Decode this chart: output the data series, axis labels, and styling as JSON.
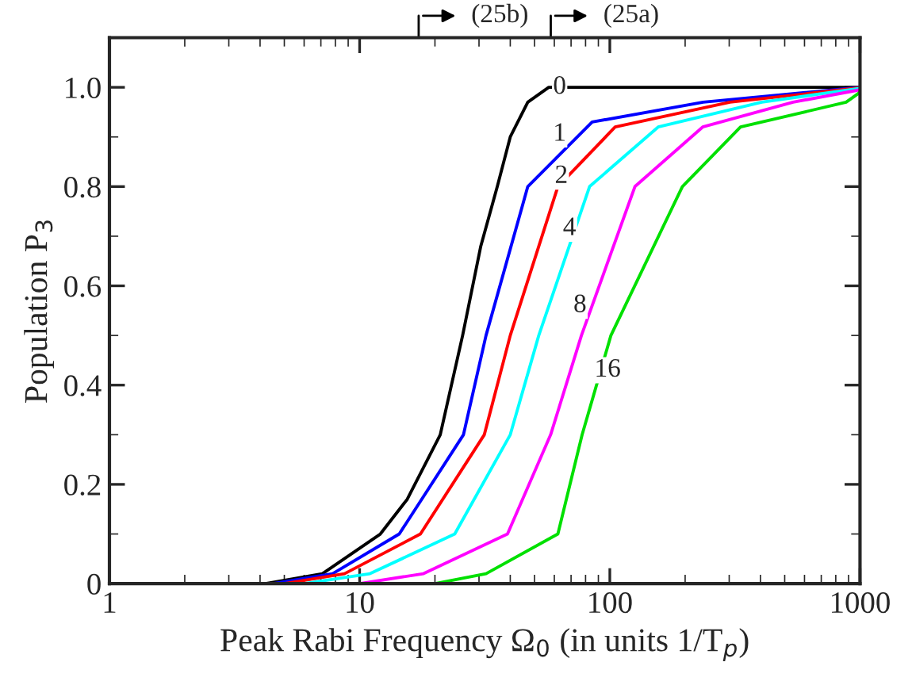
{
  "chart_data": {
    "type": "line",
    "xlabel": "Peak Rabi Frequency Ω$_{0}$ (in units 1/T$_{p}$)",
    "ylabel": "Population P$_{3}$",
    "log": "x",
    "xlim": [
      1,
      1000
    ],
    "xticks": [
      1,
      10,
      100,
      1000
    ],
    "ylim": [
      0,
      1.1
    ],
    "yticks": [
      0,
      0.2,
      0.4,
      0.6,
      0.8,
      {
        "value": 1,
        "label": "1.0"
      }
    ],
    "grid": false,
    "legend": false,
    "marker": "none",
    "line_style": "solid",
    "series": [
      {
        "color": "#000000",
        "x": [
          1,
          2,
          4.2,
          7.1,
          12.1,
          15.5,
          21,
          25.8,
          30.5,
          35.5,
          40,
          47,
          57,
          100,
          1000
        ],
        "values": [
          0,
          0,
          0,
          0.02,
          0.1,
          0.17,
          0.3,
          0.5,
          0.68,
          0.8,
          0.9,
          0.97,
          1.0,
          1.0,
          1.0
        ]
      },
      {
        "color": "#0000ff",
        "x": [
          4.5,
          7.8,
          14.4,
          26,
          32,
          47,
          85,
          236,
          1000
        ],
        "values": [
          0,
          0.02,
          0.1,
          0.3,
          0.5,
          0.8,
          0.93,
          0.97,
          1.0
        ]
      },
      {
        "color": "#ff0000",
        "x": [
          5,
          8.7,
          17.5,
          31.5,
          40,
          62,
          105,
          302,
          1000
        ],
        "values": [
          0,
          0.02,
          0.1,
          0.3,
          0.5,
          0.8,
          0.92,
          0.97,
          0.999
        ]
      },
      {
        "color": "#00ffff",
        "x": [
          6,
          11,
          24,
          40,
          52,
          83,
          156,
          405,
          1000
        ],
        "values": [
          0,
          0.02,
          0.1,
          0.3,
          0.5,
          0.8,
          0.92,
          0.97,
          0.998
        ]
      },
      {
        "color": "#ff00ff",
        "x": [
          10,
          18,
          39,
          58,
          77,
          126,
          235,
          540,
          1000
        ],
        "values": [
          0,
          0.02,
          0.1,
          0.3,
          0.5,
          0.8,
          0.92,
          0.97,
          0.995
        ]
      },
      {
        "color": "#00e000",
        "x": [
          20,
          32,
          62,
          77.5,
          101,
          195,
          333,
          880,
          1000
        ],
        "values": [
          0,
          0.02,
          0.1,
          0.3,
          0.5,
          0.8,
          0.92,
          0.97,
          0.99
        ]
      }
    ],
    "annotations": [
      {
        "text": "0",
        "x": 63,
        "y": 1.0
      },
      {
        "text": "1",
        "x": 63,
        "y": 0.905
      },
      {
        "text": "2",
        "x": 64,
        "y": 0.82
      },
      {
        "text": "4",
        "x": 69,
        "y": 0.715
      },
      {
        "text": "8",
        "x": 76,
        "y": 0.56
      },
      {
        "text": "16",
        "x": 98,
        "y": 0.43
      },
      "(25b)",
      "(25a)"
    ]
  }
}
